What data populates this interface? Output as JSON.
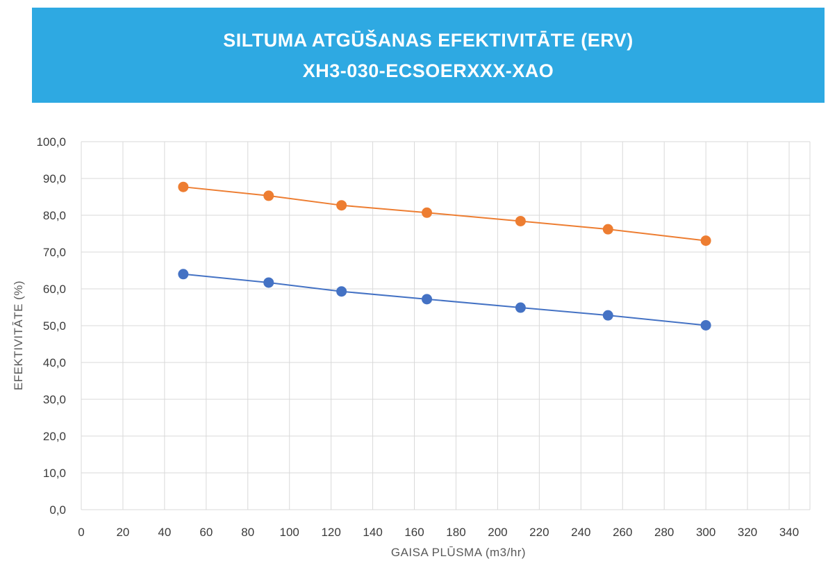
{
  "chart_data": {
    "type": "scatter",
    "title_line1": "SILTUMA ATGŪŠANAS EFEKTIVITĀTE (ERV)",
    "title_line2": "XH3-030-ECSOERXXX-XAO",
    "xlabel": "GAISA PLŪSMA (m3/hr)",
    "ylabel": "EFEKTIVITĀTE (%)",
    "xlim": [
      0,
      350
    ],
    "ylim": [
      0,
      100
    ],
    "x_ticks": [
      0,
      20,
      40,
      60,
      80,
      100,
      120,
      140,
      160,
      180,
      200,
      220,
      240,
      260,
      280,
      300,
      320,
      340
    ],
    "y_ticks": [
      "0,0",
      "10,0",
      "20,0",
      "30,0",
      "40,0",
      "50,0",
      "60,0",
      "70,0",
      "80,0",
      "90,0",
      "100,0"
    ],
    "grid": true,
    "series": [
      {
        "name": "orange",
        "color": "#ed7d31",
        "x": [
          49,
          90,
          125,
          166,
          211,
          253,
          300
        ],
        "y": [
          87.7,
          85.3,
          82.7,
          80.7,
          78.4,
          76.2,
          73.1
        ]
      },
      {
        "name": "blue",
        "color": "#4472c4",
        "x": [
          49,
          90,
          125,
          166,
          211,
          253,
          300
        ],
        "y": [
          64.0,
          61.7,
          59.3,
          57.2,
          54.9,
          52.8,
          50.1
        ]
      }
    ]
  }
}
